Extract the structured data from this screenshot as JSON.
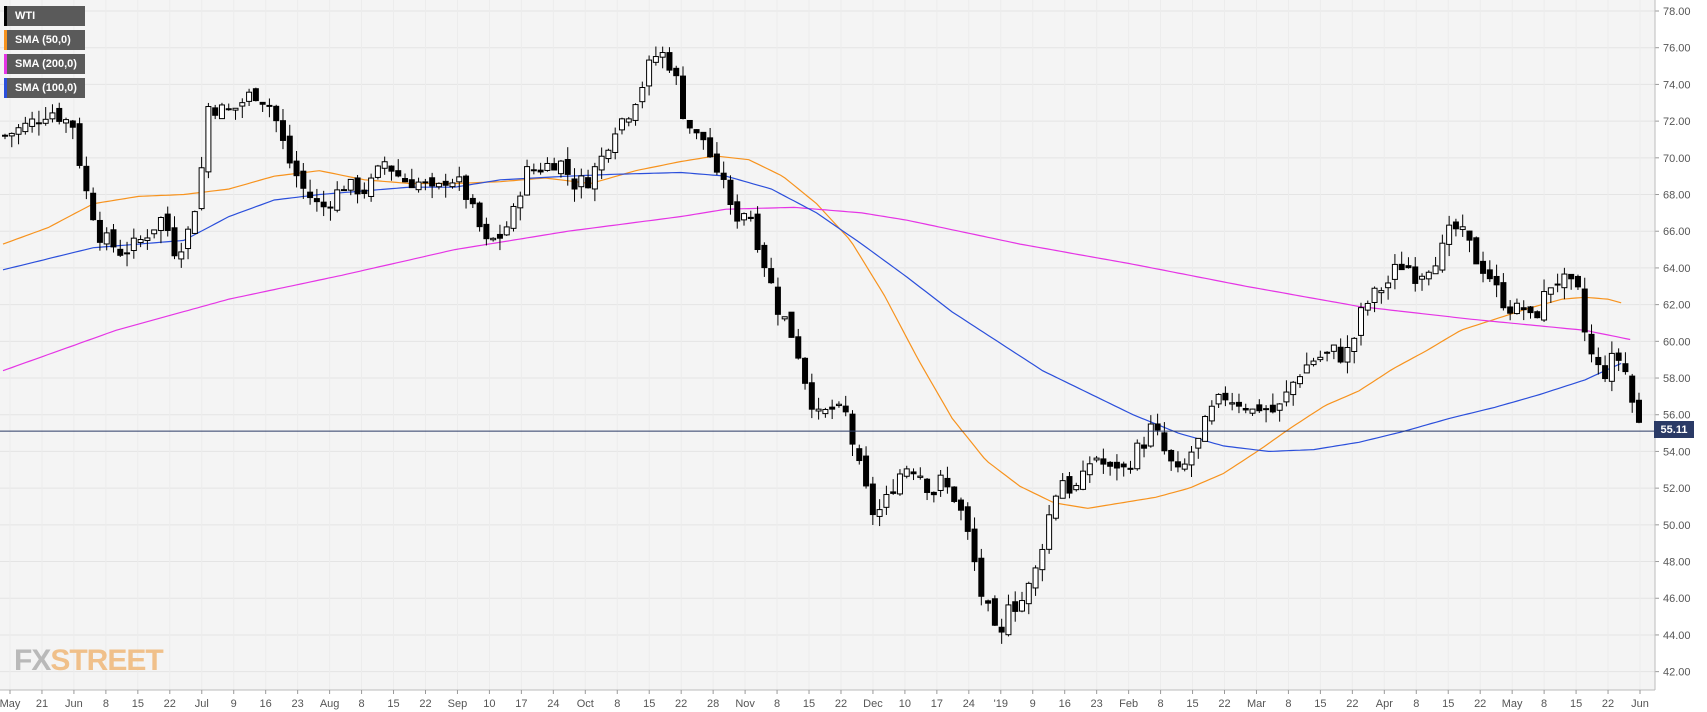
{
  "legend": [
    {
      "label": "WTI",
      "color": "#000000"
    },
    {
      "label": "SMA (50,0)",
      "color": "#f7931e"
    },
    {
      "label": "SMA (200,0)",
      "color": "#e535e5"
    },
    {
      "label": "SMA (100,0)",
      "color": "#2b4fdb"
    }
  ],
  "logo": {
    "fx": "FX",
    "street": "STREET"
  },
  "current_price_label": "55.11",
  "chart_data": {
    "type": "candlestick",
    "ylim": [
      41.0,
      78.6
    ],
    "y_ticks": [
      "78.00",
      "76.00",
      "74.00",
      "72.00",
      "70.00",
      "68.00",
      "66.00",
      "64.00",
      "62.00",
      "60.00",
      "58.00",
      "56.00",
      "54.00",
      "52.00",
      "50.00",
      "48.00",
      "46.00",
      "44.00",
      "42.00"
    ],
    "x_tick_labels": [
      "May",
      "21",
      "Jun",
      "8",
      "15",
      "22",
      "Jul",
      "9",
      "16",
      "23",
      "Aug",
      "8",
      "15",
      "22",
      "Sep",
      "10",
      "17",
      "24",
      "Oct",
      "8",
      "15",
      "22",
      "28",
      "Nov",
      "8",
      "15",
      "22",
      "Dec",
      "10",
      "17",
      "24",
      "'19",
      "9",
      "16",
      "23",
      "Feb",
      "8",
      "15",
      "22",
      "Mar",
      "8",
      "15",
      "22",
      "Apr",
      "8",
      "15",
      "22",
      "May",
      "8",
      "15",
      "22",
      "Jun"
    ],
    "current_price": 55.11,
    "series": [
      {
        "name": "WTI",
        "anchors": [
          [
            0,
            71.2
          ],
          [
            10,
            71.8
          ],
          [
            20,
            72.6
          ],
          [
            30,
            71.8
          ],
          [
            35,
            68.5
          ],
          [
            42,
            65.8
          ],
          [
            52,
            64.8
          ],
          [
            60,
            65.5
          ],
          [
            70,
            66.8
          ],
          [
            75,
            65.0
          ],
          [
            80,
            65.5
          ],
          [
            86,
            68.3
          ],
          [
            90,
            72.8
          ],
          [
            100,
            72.5
          ],
          [
            110,
            73.6
          ],
          [
            118,
            72.8
          ],
          [
            125,
            70.0
          ],
          [
            132,
            68.3
          ],
          [
            140,
            67.2
          ],
          [
            150,
            68.5
          ],
          [
            160,
            68.2
          ],
          [
            168,
            69.8
          ],
          [
            176,
            68.8
          ],
          [
            185,
            68.6
          ],
          [
            190,
            68.0
          ],
          [
            196,
            69.0
          ],
          [
            202,
            68.5
          ],
          [
            208,
            66.8
          ],
          [
            213,
            65.3
          ],
          [
            220,
            65.8
          ],
          [
            225,
            67.0
          ],
          [
            230,
            69.2
          ],
          [
            238,
            69.5
          ],
          [
            245,
            69.9
          ],
          [
            252,
            68.6
          ],
          [
            258,
            68.8
          ],
          [
            264,
            70.0
          ],
          [
            270,
            71.7
          ],
          [
            276,
            72.5
          ],
          [
            282,
            74.0
          ],
          [
            286,
            75.3
          ],
          [
            290,
            75.8
          ],
          [
            296,
            74.8
          ],
          [
            300,
            72.5
          ],
          [
            305,
            71.2
          ],
          [
            310,
            71.0
          ],
          [
            315,
            68.8
          ],
          [
            318,
            69.0
          ],
          [
            322,
            66.5
          ],
          [
            326,
            67.2
          ],
          [
            330,
            66.8
          ],
          [
            334,
            65.0
          ],
          [
            338,
            63.5
          ],
          [
            342,
            61.8
          ],
          [
            346,
            61.0
          ],
          [
            350,
            59.8
          ],
          [
            356,
            57.0
          ],
          [
            360,
            55.9
          ],
          [
            366,
            56.3
          ],
          [
            372,
            56.0
          ],
          [
            376,
            54.0
          ],
          [
            380,
            52.2
          ],
          [
            384,
            50.7
          ],
          [
            388,
            50.8
          ],
          [
            392,
            51.9
          ],
          [
            396,
            52.8
          ],
          [
            400,
            53.3
          ],
          [
            406,
            52.7
          ],
          [
            410,
            51.6
          ],
          [
            414,
            52.4
          ],
          [
            420,
            51.5
          ],
          [
            424,
            50.4
          ],
          [
            428,
            48.5
          ],
          [
            432,
            46.2
          ],
          [
            436,
            45.0
          ],
          [
            440,
            43.2
          ],
          [
            444,
            46.0
          ],
          [
            448,
            45.5
          ],
          [
            452,
            46.3
          ],
          [
            456,
            47.5
          ],
          [
            460,
            49.5
          ],
          [
            464,
            51.5
          ],
          [
            468,
            52.5
          ],
          [
            472,
            51.8
          ],
          [
            476,
            52.2
          ],
          [
            480,
            53.4
          ],
          [
            484,
            53.8
          ],
          [
            488,
            52.8
          ],
          [
            492,
            53.3
          ],
          [
            496,
            52.9
          ],
          [
            500,
            54.0
          ],
          [
            504,
            54.5
          ],
          [
            508,
            55.5
          ],
          [
            512,
            54.2
          ],
          [
            516,
            53.3
          ],
          [
            520,
            52.6
          ],
          [
            524,
            53.8
          ],
          [
            528,
            54.5
          ],
          [
            532,
            55.8
          ],
          [
            536,
            56.6
          ],
          [
            540,
            57.0
          ],
          [
            544,
            56.8
          ],
          [
            548,
            56.6
          ],
          [
            552,
            56.2
          ],
          [
            556,
            56.5
          ],
          [
            560,
            56.1
          ],
          [
            564,
            56.4
          ],
          [
            568,
            57.3
          ],
          [
            572,
            58.2
          ],
          [
            576,
            58.7
          ],
          [
            580,
            59.1
          ],
          [
            584,
            59.2
          ],
          [
            588,
            59.5
          ],
          [
            592,
            59.1
          ],
          [
            596,
            59.8
          ],
          [
            600,
            61.5
          ],
          [
            604,
            62.3
          ],
          [
            608,
            62.8
          ],
          [
            612,
            63.2
          ],
          [
            616,
            64.1
          ],
          [
            620,
            64.2
          ],
          [
            624,
            63.6
          ],
          [
            628,
            63.9
          ],
          [
            632,
            64.4
          ],
          [
            636,
            65.0
          ],
          [
            640,
            66.2
          ],
          [
            644,
            66.0
          ],
          [
            648,
            65.2
          ],
          [
            652,
            64.2
          ],
          [
            656,
            63.8
          ],
          [
            660,
            62.8
          ],
          [
            664,
            62.0
          ],
          [
            668,
            61.7
          ],
          [
            672,
            61.8
          ],
          [
            676,
            61.0
          ],
          [
            680,
            62.2
          ],
          [
            684,
            63.1
          ],
          [
            688,
            63.4
          ],
          [
            692,
            63.1
          ],
          [
            696,
            62.6
          ],
          [
            700,
            59.8
          ],
          [
            704,
            58.6
          ],
          [
            708,
            58.3
          ],
          [
            712,
            59.2
          ],
          [
            716,
            58.9
          ],
          [
            720,
            56.7
          ],
          [
            724,
            55.1
          ]
        ]
      },
      {
        "name": "SMA (50,0)",
        "anchors": [
          [
            0,
            65.3
          ],
          [
            20,
            66.2
          ],
          [
            40,
            67.5
          ],
          [
            60,
            67.9
          ],
          [
            80,
            68.0
          ],
          [
            100,
            68.3
          ],
          [
            120,
            69.0
          ],
          [
            140,
            69.3
          ],
          [
            160,
            68.8
          ],
          [
            180,
            68.6
          ],
          [
            200,
            68.6
          ],
          [
            220,
            68.7
          ],
          [
            240,
            68.9
          ],
          [
            260,
            68.6
          ],
          [
            280,
            69.3
          ],
          [
            300,
            69.8
          ],
          [
            315,
            70.1
          ],
          [
            330,
            69.9
          ],
          [
            345,
            69.0
          ],
          [
            360,
            67.5
          ],
          [
            375,
            65.5
          ],
          [
            390,
            62.5
          ],
          [
            405,
            59.0
          ],
          [
            420,
            55.8
          ],
          [
            435,
            53.5
          ],
          [
            450,
            52.1
          ],
          [
            465,
            51.2
          ],
          [
            480,
            50.9
          ],
          [
            495,
            51.2
          ],
          [
            510,
            51.5
          ],
          [
            525,
            52.0
          ],
          [
            540,
            52.8
          ],
          [
            555,
            54.0
          ],
          [
            570,
            55.3
          ],
          [
            585,
            56.5
          ],
          [
            600,
            57.3
          ],
          [
            615,
            58.5
          ],
          [
            630,
            59.5
          ],
          [
            645,
            60.6
          ],
          [
            660,
            61.2
          ],
          [
            675,
            61.8
          ],
          [
            690,
            62.3
          ],
          [
            700,
            62.4
          ],
          [
            710,
            62.3
          ],
          [
            716,
            62.1
          ]
        ]
      },
      {
        "name": "SMA (200,0)",
        "anchors": [
          [
            0,
            58.4
          ],
          [
            50,
            60.6
          ],
          [
            100,
            62.3
          ],
          [
            150,
            63.6
          ],
          [
            200,
            65.0
          ],
          [
            250,
            66.0
          ],
          [
            300,
            66.8
          ],
          [
            320,
            67.2
          ],
          [
            350,
            67.3
          ],
          [
            380,
            67.0
          ],
          [
            400,
            66.6
          ],
          [
            450,
            65.3
          ],
          [
            500,
            64.2
          ],
          [
            550,
            63.0
          ],
          [
            600,
            61.9
          ],
          [
            650,
            61.2
          ],
          [
            700,
            60.6
          ],
          [
            720,
            60.1
          ]
        ]
      },
      {
        "name": "SMA (100,0)",
        "anchors": [
          [
            0,
            63.9
          ],
          [
            40,
            65.1
          ],
          [
            80,
            65.5
          ],
          [
            100,
            66.8
          ],
          [
            120,
            67.7
          ],
          [
            140,
            68.0
          ],
          [
            160,
            68.2
          ],
          [
            180,
            68.4
          ],
          [
            200,
            68.4
          ],
          [
            220,
            68.8
          ],
          [
            250,
            69.0
          ],
          [
            270,
            69.1
          ],
          [
            300,
            69.2
          ],
          [
            320,
            69.0
          ],
          [
            340,
            68.3
          ],
          [
            360,
            67.0
          ],
          [
            380,
            65.3
          ],
          [
            400,
            63.5
          ],
          [
            420,
            61.6
          ],
          [
            440,
            60.0
          ],
          [
            460,
            58.4
          ],
          [
            480,
            57.2
          ],
          [
            500,
            56.0
          ],
          [
            520,
            55.0
          ],
          [
            540,
            54.3
          ],
          [
            560,
            54.0
          ],
          [
            580,
            54.1
          ],
          [
            600,
            54.5
          ],
          [
            620,
            55.1
          ],
          [
            640,
            55.8
          ],
          [
            660,
            56.4
          ],
          [
            680,
            57.1
          ],
          [
            700,
            57.9
          ],
          [
            716,
            58.8
          ]
        ]
      }
    ],
    "grid": true
  }
}
